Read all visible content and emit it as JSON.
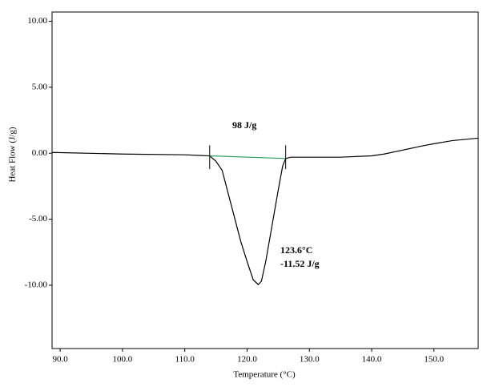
{
  "chart_data": {
    "type": "line",
    "xlabel": "Temperature (°C)",
    "ylabel": "Heat Flow (J/g)",
    "xlim": [
      88.7,
      157.1
    ],
    "ylim": [
      -14.8,
      10.7
    ],
    "xticks": [
      {
        "value": 90,
        "label": "90.0"
      },
      {
        "value": 100,
        "label": "100.0"
      },
      {
        "value": 110,
        "label": "110.0"
      },
      {
        "value": 120,
        "label": "120.0"
      },
      {
        "value": 130,
        "label": "130.0"
      },
      {
        "value": 140,
        "label": "140.0"
      },
      {
        "value": 150,
        "label": "150.0"
      }
    ],
    "yticks": [
      {
        "value": 10,
        "label": "10.00"
      },
      {
        "value": 5,
        "label": "5.00"
      },
      {
        "value": 0,
        "label": "0.00"
      },
      {
        "value": -5,
        "label": "-5.00"
      },
      {
        "value": -10,
        "label": "-10.00"
      }
    ],
    "series": [
      {
        "color": "#000000",
        "x": [
          88.7,
          100,
          110,
          114,
          115,
          116,
          117,
          118,
          119,
          120,
          121,
          121.8,
          122.3,
          123,
          124,
          125,
          125.7,
          126.2,
          127,
          130,
          135,
          140,
          142,
          145,
          148,
          150,
          153,
          157.1
        ],
        "values": [
          0.06,
          -0.06,
          -0.12,
          -0.2,
          -0.6,
          -1.3,
          -3.1,
          -4.9,
          -6.7,
          -8.2,
          -9.6,
          -9.95,
          -9.7,
          -8.2,
          -5.5,
          -2.8,
          -1.0,
          -0.4,
          -0.3,
          -0.3,
          -0.3,
          -0.2,
          -0.06,
          0.24,
          0.54,
          0.72,
          0.96,
          1.14
        ]
      },
      {
        "color": "#2ca05a",
        "x": [
          114,
          126.2
        ],
        "values": [
          -0.2,
          -0.4
        ]
      }
    ],
    "annotations": [
      "98 J/g",
      "123.6°C",
      "-11.52 J/g"
    ]
  }
}
